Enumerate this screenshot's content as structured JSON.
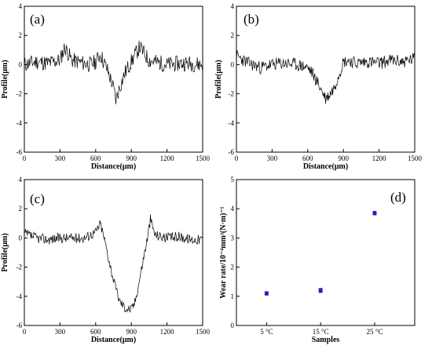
{
  "chart_data": [
    {
      "id": "a",
      "type": "line",
      "panel_label": "(a)",
      "xlabel": "Distance(μm)",
      "ylabel": "Profile(μm)",
      "xlim": [
        0,
        1500
      ],
      "ylim": [
        -6,
        4
      ],
      "xticks": [
        0,
        300,
        600,
        900,
        1200,
        1500
      ],
      "yticks": [
        -6,
        -4,
        -2,
        0,
        2,
        4
      ],
      "line_color": "#000000",
      "noise_amplitude": 0.55,
      "seed": 11,
      "x": [
        0,
        100,
        200,
        300,
        340,
        400,
        500,
        560,
        600,
        640,
        700,
        740,
        770,
        800,
        850,
        900,
        940,
        970,
        1050,
        1200,
        1350,
        1500
      ],
      "y": [
        0.0,
        0.2,
        0.1,
        0.3,
        1.2,
        0.3,
        0.1,
        0.0,
        0.2,
        0.7,
        -0.4,
        -1.3,
        -2.4,
        -1.6,
        -0.5,
        0.2,
        0.8,
        1.2,
        0.3,
        0.0,
        0.1,
        0.0
      ]
    },
    {
      "id": "b",
      "type": "line",
      "panel_label": "(b)",
      "xlabel": "Distance(μm)",
      "ylabel": "Profile(μm)",
      "xlim": [
        0,
        1500
      ],
      "ylim": [
        -6,
        4
      ],
      "xticks": [
        0,
        300,
        600,
        900,
        1200,
        1500
      ],
      "yticks": [
        -6,
        -4,
        -2,
        0,
        2,
        4
      ],
      "line_color": "#000000",
      "noise_amplitude": 0.45,
      "seed": 23,
      "x": [
        0,
        100,
        200,
        300,
        400,
        500,
        600,
        640,
        700,
        750,
        780,
        820,
        860,
        900,
        950,
        1000,
        1100,
        1200,
        1300,
        1400,
        1500
      ],
      "y": [
        0.6,
        0.1,
        -0.2,
        0.0,
        0.1,
        0.0,
        -0.2,
        -0.6,
        -1.5,
        -2.3,
        -2.1,
        -1.6,
        -0.7,
        0.2,
        0.3,
        0.1,
        0.2,
        0.1,
        0.3,
        0.2,
        0.4
      ]
    },
    {
      "id": "c",
      "type": "line",
      "panel_label": "(c)",
      "xlabel": "Distance(μm)",
      "ylabel": "Profile(μm)",
      "xlim": [
        0,
        1500
      ],
      "ylim": [
        -6,
        4
      ],
      "xticks": [
        0,
        300,
        600,
        900,
        1200,
        1500
      ],
      "yticks": [
        -6,
        -4,
        -2,
        0,
        2,
        4
      ],
      "line_color": "#000000",
      "noise_amplitude": 0.35,
      "seed": 37,
      "x": [
        0,
        100,
        200,
        300,
        400,
        500,
        600,
        640,
        680,
        720,
        760,
        800,
        850,
        900,
        930,
        960,
        1000,
        1040,
        1060,
        1100,
        1200,
        1300,
        1400,
        1500
      ],
      "y": [
        0.3,
        0.0,
        -0.1,
        0.0,
        0.0,
        0.0,
        0.4,
        1.0,
        -0.3,
        -1.8,
        -3.2,
        -4.3,
        -4.8,
        -4.9,
        -4.4,
        -3.2,
        -1.5,
        0.2,
        1.3,
        0.2,
        0.0,
        0.1,
        -0.1,
        -0.1
      ]
    },
    {
      "id": "d",
      "type": "scatter",
      "panel_label": "(d)",
      "xlabel": "Samples",
      "ylabel": "Wear rate/10⁻⁴mm³(N·m)⁻¹",
      "ylim": [
        0,
        5
      ],
      "yticks": [
        0,
        1,
        2,
        3,
        4,
        5
      ],
      "categories": [
        "5 °C",
        "15 °C",
        "25 °C"
      ],
      "values": [
        1.1,
        1.2,
        3.85
      ],
      "errors": [
        0.06,
        0.07,
        0.06
      ],
      "marker_color": "#1f1fd2"
    }
  ]
}
